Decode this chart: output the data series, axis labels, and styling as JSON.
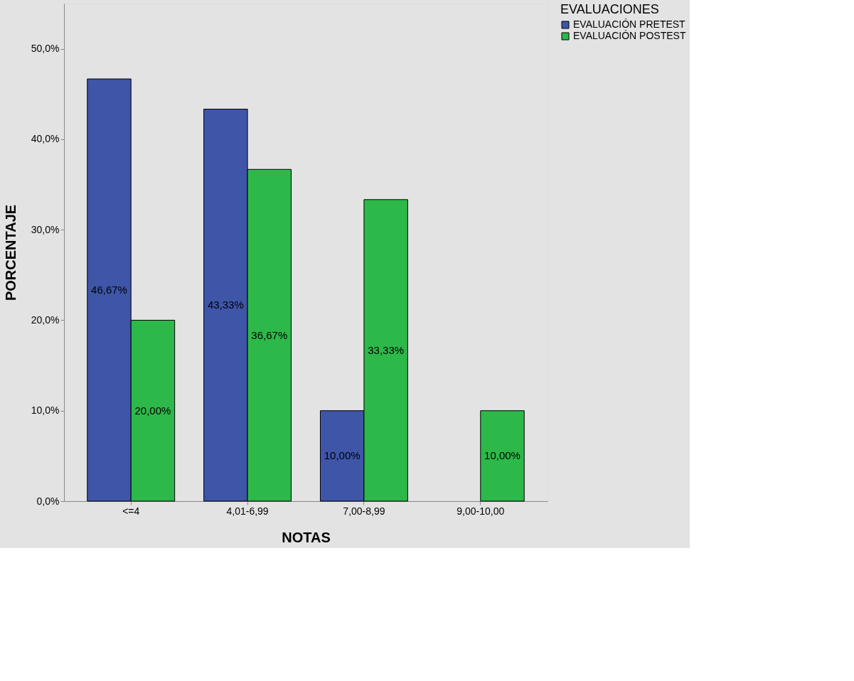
{
  "chart_data": {
    "type": "bar",
    "xlabel": "NOTAS",
    "ylabel": "PORCENTAJE",
    "legend_title": "EVALUACIONES",
    "legend": "top right",
    "grid": false,
    "categories": [
      "<=4",
      "4,01-6,99",
      "7,00-8,99",
      "9,00-10,00"
    ],
    "ylim": [
      0,
      55
    ],
    "yticks": [
      {
        "value": 0,
        "label": "0,0%"
      },
      {
        "value": 10,
        "label": "10,0%"
      },
      {
        "value": 20,
        "label": "20,0%"
      },
      {
        "value": 30,
        "label": "30,0%"
      },
      {
        "value": 40,
        "label": "40,0%"
      },
      {
        "value": 50,
        "label": "50,0%"
      }
    ],
    "series": [
      {
        "name": "EVALUACIÓN PRETEST",
        "color": "#3e55a8",
        "values": [
          46.67,
          43.33,
          10.0,
          null
        ],
        "value_labels": [
          "46,67%",
          "43,33%",
          "10,00%",
          null
        ]
      },
      {
        "name": "EVALUACIÓN POSTEST",
        "color": "#2db84a",
        "values": [
          20.0,
          36.67,
          33.33,
          10.0
        ],
        "value_labels": [
          "20,00%",
          "36,67%",
          "33,33%",
          "10,00%"
        ]
      }
    ]
  }
}
